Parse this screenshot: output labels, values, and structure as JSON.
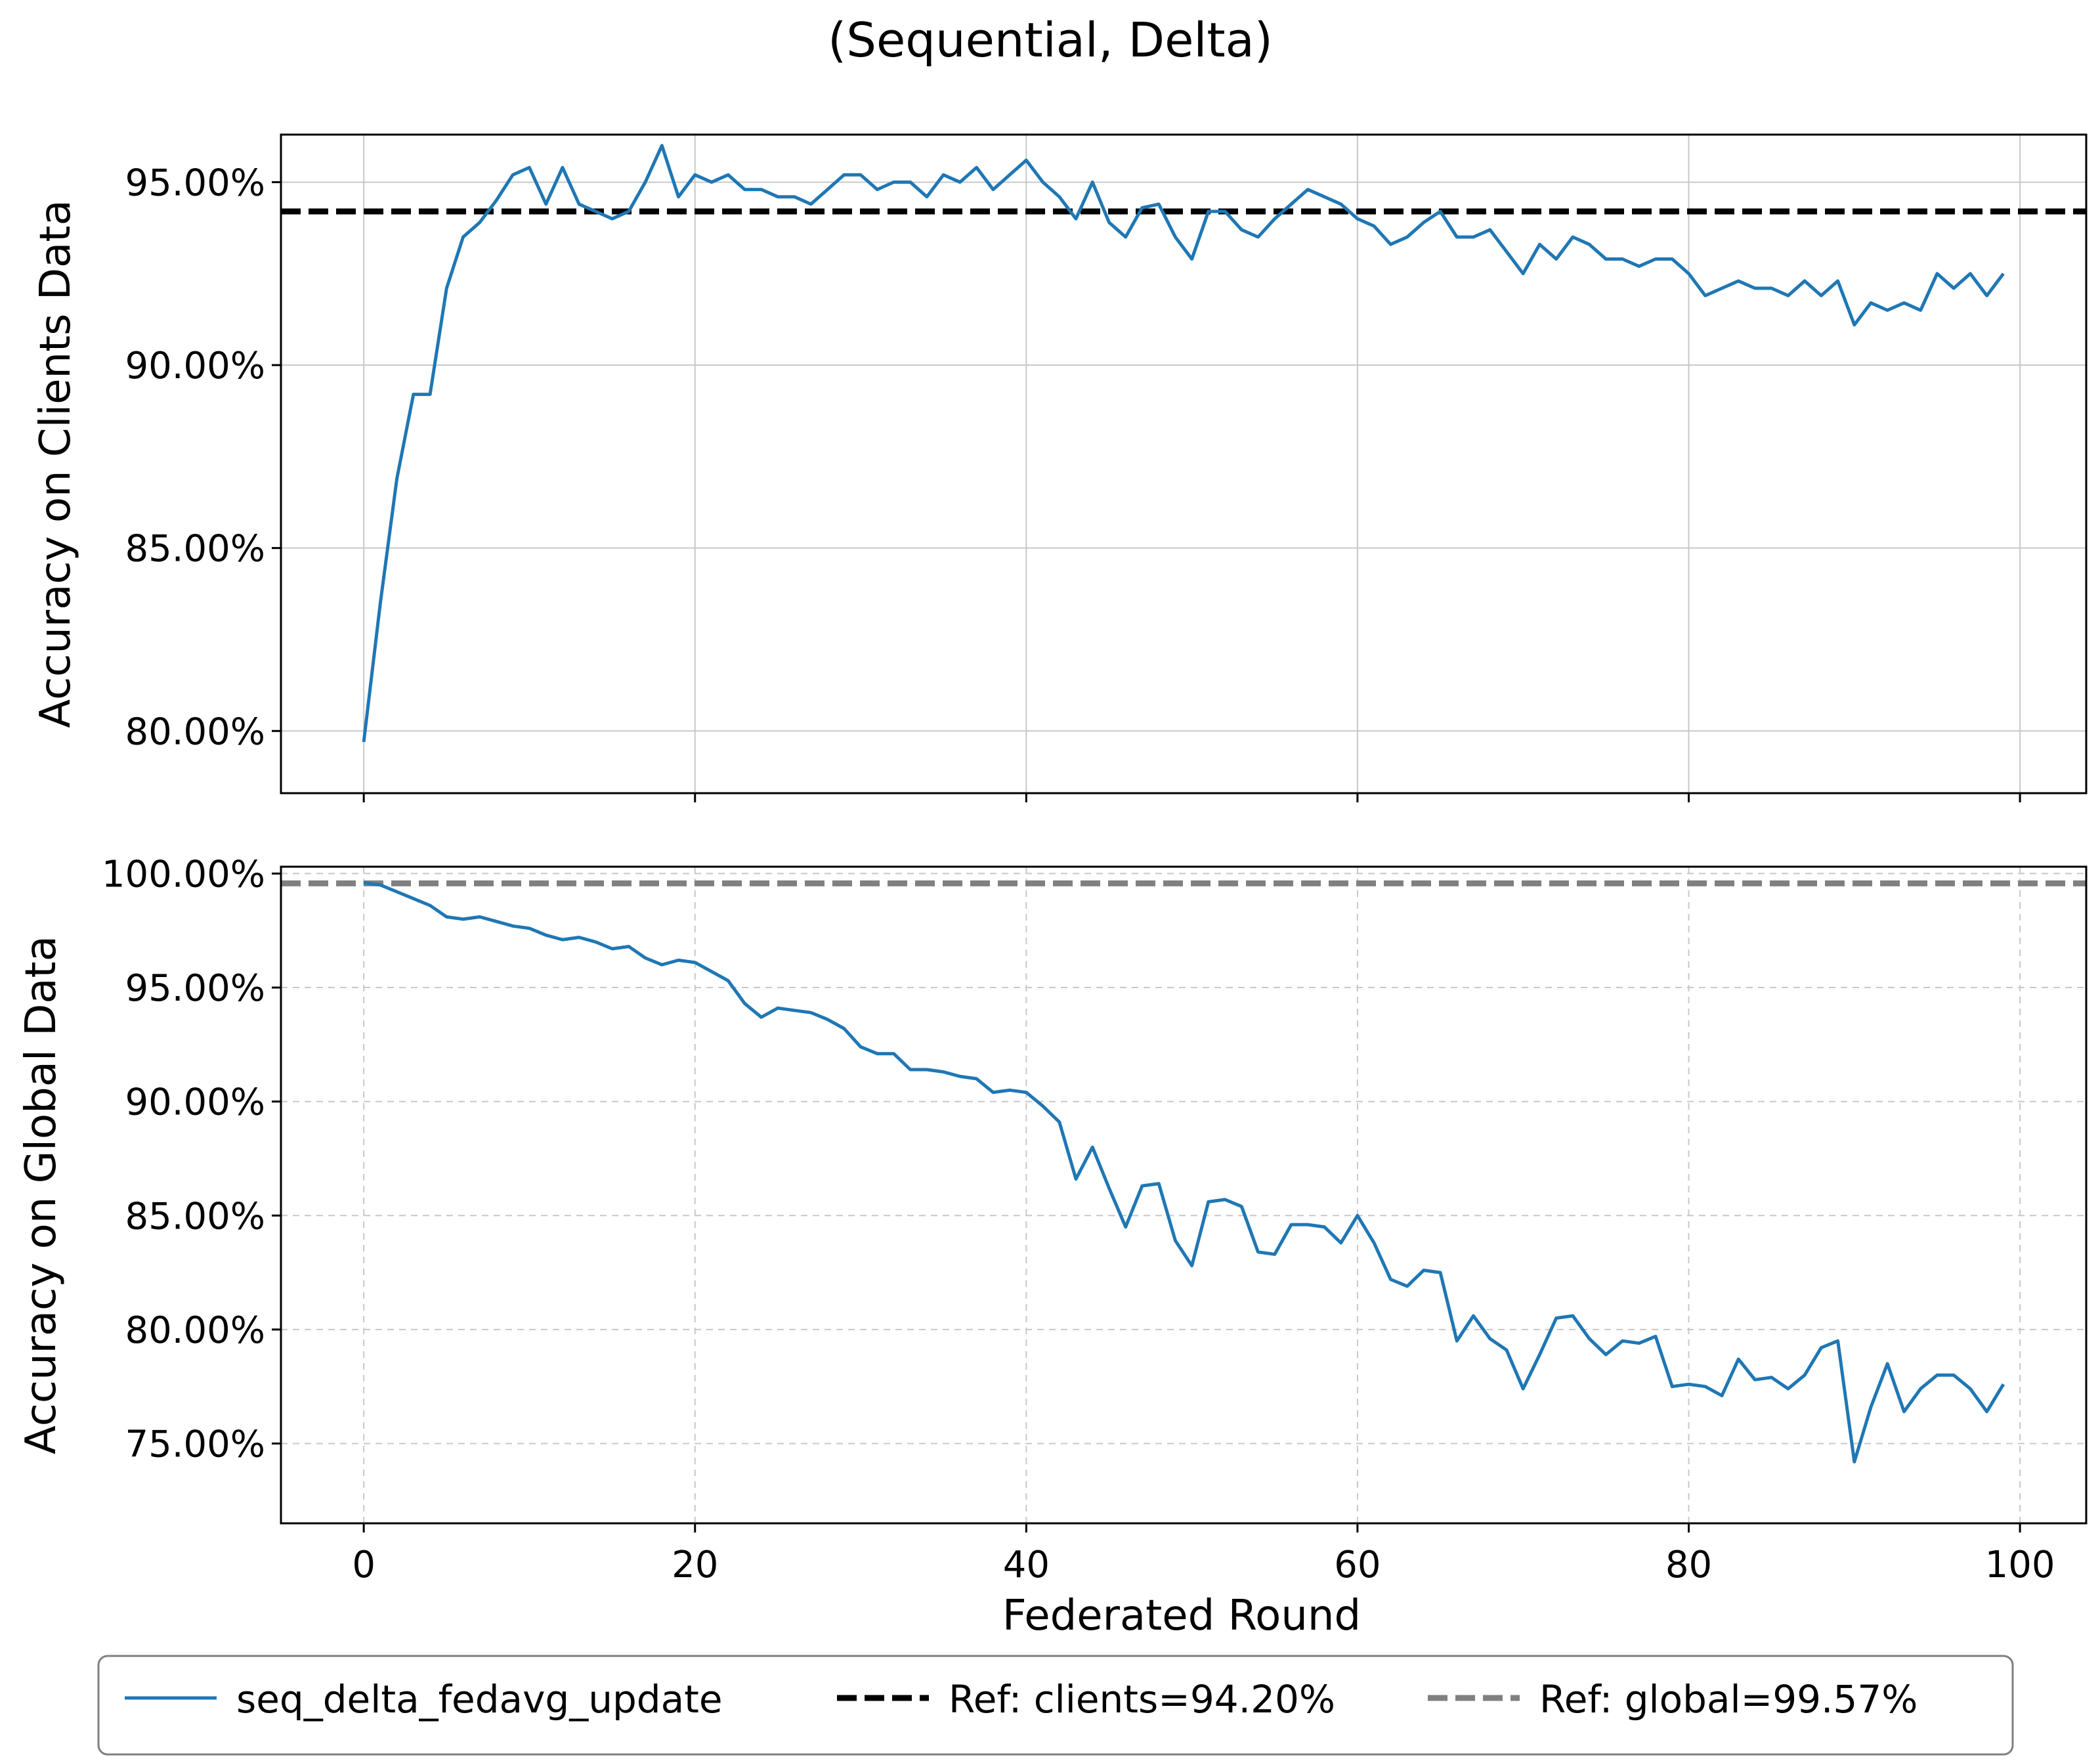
{
  "figure": {
    "title": "(Sequential, Delta)",
    "xlabel": "Federated Round",
    "line_color": "#1f77b4",
    "ref_clients_color": "#000000",
    "ref_global_color": "#808080"
  },
  "legend": {
    "placement": "bottom-center",
    "items": [
      {
        "label": "seq_delta_fedavg_update",
        "color": "#1f77b4",
        "style": "solid"
      },
      {
        "label": "Ref: clients=94.20%",
        "color": "#000000",
        "style": "dashed"
      },
      {
        "label": "Ref: global=99.57%",
        "color": "#808080",
        "style": "dashed"
      }
    ]
  },
  "chart_data": [
    {
      "type": "line",
      "ylabel": "Accuracy on Clients Data",
      "xlim": [
        -5,
        104
      ],
      "ylim": [
        78.3,
        96.3
      ],
      "xticks": [
        0,
        20,
        40,
        60,
        80,
        100
      ],
      "yticks": [
        80,
        85,
        90,
        95
      ],
      "ytick_labels": [
        "80.00%",
        "85.00%",
        "90.00%",
        "95.00%"
      ],
      "grid": "solid",
      "reference": {
        "name": "Ref: clients=94.20%",
        "value": 94.2
      },
      "series": [
        {
          "name": "seq_delta_fedavg_update",
          "x": [
            0,
            1,
            2,
            3,
            4,
            5,
            6,
            7,
            8,
            9,
            10,
            11,
            12,
            13,
            14,
            15,
            16,
            17,
            18,
            19,
            20,
            21,
            22,
            23,
            24,
            25,
            26,
            27,
            28,
            29,
            30,
            31,
            32,
            33,
            34,
            35,
            36,
            37,
            38,
            39,
            40,
            41,
            42,
            43,
            44,
            45,
            46,
            47,
            48,
            49,
            50,
            51,
            52,
            53,
            54,
            55,
            56,
            57,
            58,
            59,
            60,
            61,
            62,
            63,
            64,
            65,
            66,
            67,
            68,
            69,
            70,
            71,
            72,
            73,
            74,
            75,
            76,
            77,
            78,
            79,
            80,
            81,
            82,
            83,
            84,
            85,
            86,
            87,
            88,
            89,
            90,
            91,
            92,
            93,
            94,
            95,
            96,
            97,
            98,
            99
          ],
          "values": [
            79.7,
            83.5,
            86.9,
            89.2,
            89.2,
            92.1,
            93.5,
            93.9,
            94.5,
            95.2,
            95.4,
            94.4,
            95.4,
            94.4,
            94.2,
            94.0,
            94.2,
            95.0,
            96.0,
            94.6,
            95.2,
            95.0,
            95.2,
            94.8,
            94.8,
            94.6,
            94.6,
            94.4,
            94.8,
            95.2,
            95.2,
            94.8,
            95.0,
            95.0,
            94.6,
            95.2,
            95.0,
            95.4,
            94.8,
            95.2,
            95.6,
            95.0,
            94.6,
            94.0,
            95.0,
            93.9,
            93.5,
            94.3,
            94.4,
            93.5,
            92.9,
            94.2,
            94.2,
            93.7,
            93.5,
            94.0,
            94.4,
            94.8,
            94.6,
            94.4,
            94.0,
            93.8,
            93.3,
            93.5,
            93.9,
            94.2,
            93.5,
            93.5,
            93.7,
            93.1,
            92.5,
            93.3,
            92.9,
            93.5,
            93.3,
            92.9,
            92.9,
            92.7,
            92.9,
            92.9,
            92.5,
            91.9,
            92.1,
            92.3,
            92.1,
            92.1,
            91.9,
            92.3,
            91.9,
            92.3,
            91.1,
            91.7,
            91.5,
            91.7,
            91.5,
            92.5,
            92.1,
            92.5,
            91.9,
            92.5
          ]
        }
      ]
    },
    {
      "type": "line",
      "ylabel": "Accuracy on Global Data",
      "xlabel": "Federated Round",
      "xlim": [
        -5,
        104
      ],
      "ylim": [
        71.5,
        100.3
      ],
      "xticks": [
        0,
        20,
        40,
        60,
        80,
        100
      ],
      "xtick_labels": [
        "0",
        "20",
        "40",
        "60",
        "80",
        "100"
      ],
      "yticks": [
        75,
        80,
        85,
        90,
        95,
        100
      ],
      "ytick_labels": [
        "75.00%",
        "80.00%",
        "85.00%",
        "90.00%",
        "95.00%",
        "100.00%"
      ],
      "grid": "dashed",
      "reference": {
        "name": "Ref: global=99.57%",
        "value": 99.57
      },
      "series": [
        {
          "name": "seq_delta_fedavg_update",
          "x": [
            0,
            1,
            2,
            3,
            4,
            5,
            6,
            7,
            8,
            9,
            10,
            11,
            12,
            13,
            14,
            15,
            16,
            17,
            18,
            19,
            20,
            21,
            22,
            23,
            24,
            25,
            26,
            27,
            28,
            29,
            30,
            31,
            32,
            33,
            34,
            35,
            36,
            37,
            38,
            39,
            40,
            41,
            42,
            43,
            44,
            45,
            46,
            47,
            48,
            49,
            50,
            51,
            52,
            53,
            54,
            55,
            56,
            57,
            58,
            59,
            60,
            61,
            62,
            63,
            64,
            65,
            66,
            67,
            68,
            69,
            70,
            71,
            72,
            73,
            74,
            75,
            76,
            77,
            78,
            79,
            80,
            81,
            82,
            83,
            84,
            85,
            86,
            87,
            88,
            89,
            90,
            91,
            92,
            93,
            94,
            95,
            96,
            97,
            98,
            99
          ],
          "values": [
            99.6,
            99.5,
            99.2,
            98.9,
            98.6,
            98.1,
            98.0,
            98.1,
            97.9,
            97.7,
            97.6,
            97.3,
            97.1,
            97.2,
            97.0,
            96.7,
            96.8,
            96.3,
            96.0,
            96.2,
            96.1,
            95.7,
            95.3,
            94.3,
            93.7,
            94.1,
            94.0,
            93.9,
            93.6,
            93.2,
            92.4,
            92.1,
            92.1,
            91.4,
            91.4,
            91.3,
            91.1,
            91.0,
            90.4,
            90.5,
            90.4,
            89.8,
            89.1,
            86.6,
            88.0,
            86.2,
            84.5,
            86.3,
            86.4,
            83.9,
            82.8,
            85.6,
            85.7,
            85.4,
            83.4,
            83.3,
            84.6,
            84.6,
            84.5,
            83.8,
            85.0,
            83.8,
            82.2,
            81.9,
            82.6,
            82.5,
            79.5,
            80.6,
            79.6,
            79.1,
            77.4,
            78.9,
            80.5,
            80.6,
            79.6,
            78.9,
            79.5,
            79.4,
            79.7,
            77.5,
            77.6,
            77.5,
            77.1,
            78.7,
            77.8,
            77.9,
            77.4,
            78.0,
            79.2,
            79.5,
            74.2,
            76.6,
            78.5,
            76.4,
            77.4,
            78.0,
            78.0,
            77.4,
            76.4,
            77.6
          ]
        }
      ]
    }
  ]
}
